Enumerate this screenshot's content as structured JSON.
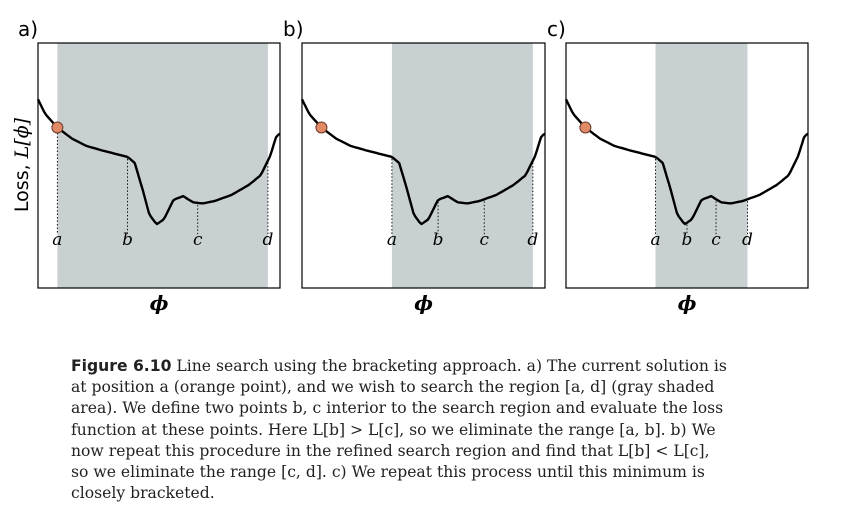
{
  "figure": {
    "ylabel_prefix": "Loss, ",
    "ylabel_math": "L[ϕ]",
    "xlabel": "ϕ",
    "shade_color": "#c9d0d1",
    "point_color": "#e08b66",
    "panels": [
      {
        "label": "a)",
        "shade": [
          "a",
          "d"
        ],
        "ticks": [
          {
            "name": "a",
            "x": 0.08
          },
          {
            "name": "b",
            "x": 0.37
          },
          {
            "name": "c",
            "x": 0.66
          },
          {
            "name": "d",
            "x": 0.95
          }
        ]
      },
      {
        "label": "b)",
        "shade": [
          "a",
          "d"
        ],
        "ticks": [
          {
            "name": "a",
            "x": 0.37
          },
          {
            "name": "b",
            "x": 0.56
          },
          {
            "name": "c",
            "x": 0.75
          },
          {
            "name": "d",
            "x": 0.95
          }
        ]
      },
      {
        "label": "c)",
        "shade": [
          "a",
          "d"
        ],
        "ticks": [
          {
            "name": "a",
            "x": 0.37
          },
          {
            "name": "b",
            "x": 0.5
          },
          {
            "name": "c",
            "x": 0.62
          },
          {
            "name": "d",
            "x": 0.75
          }
        ]
      }
    ]
  },
  "caption": {
    "fig_num": "Figure 6.10",
    "lines": [
      " Line search using the bracketing approach. a) The current solution is",
      "at position a (orange point), and we wish to search the region [a, d] (gray shaded",
      "area). We define two points b, c interior to the search region and evaluate the loss",
      "function at these points. Here L[b] > L[c], so we eliminate the range [a, b]. b) We",
      "now repeat this procedure in the refined search region and find that L[b] < L[c],",
      "so we eliminate the range [c, d]. c) We repeat this process until this minimum is",
      "closely bracketed."
    ]
  }
}
